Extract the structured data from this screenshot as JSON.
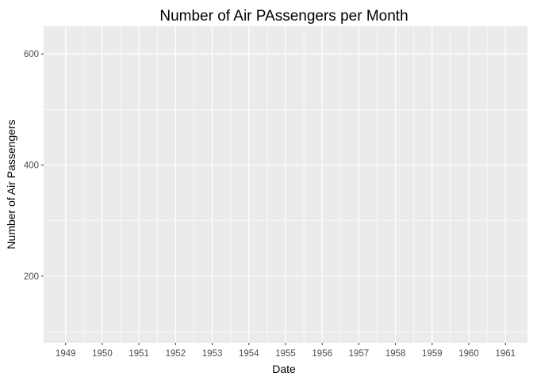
{
  "chart_data": {
    "type": "line",
    "title": "Number of Air PAssengers per Month",
    "xlabel": "Date",
    "ylabel": "Number of Air Passengers",
    "x_ticks": [
      "1949",
      "1950",
      "1951",
      "1952",
      "1953",
      "1954",
      "1955",
      "1956",
      "1957",
      "1958",
      "1959",
      "1960",
      "1961"
    ],
    "y_ticks": [
      200,
      400,
      600
    ],
    "ylim": [
      80,
      650
    ],
    "series": [],
    "grid": true,
    "background": "#ebebeb",
    "grid_color": "#ffffff"
  }
}
